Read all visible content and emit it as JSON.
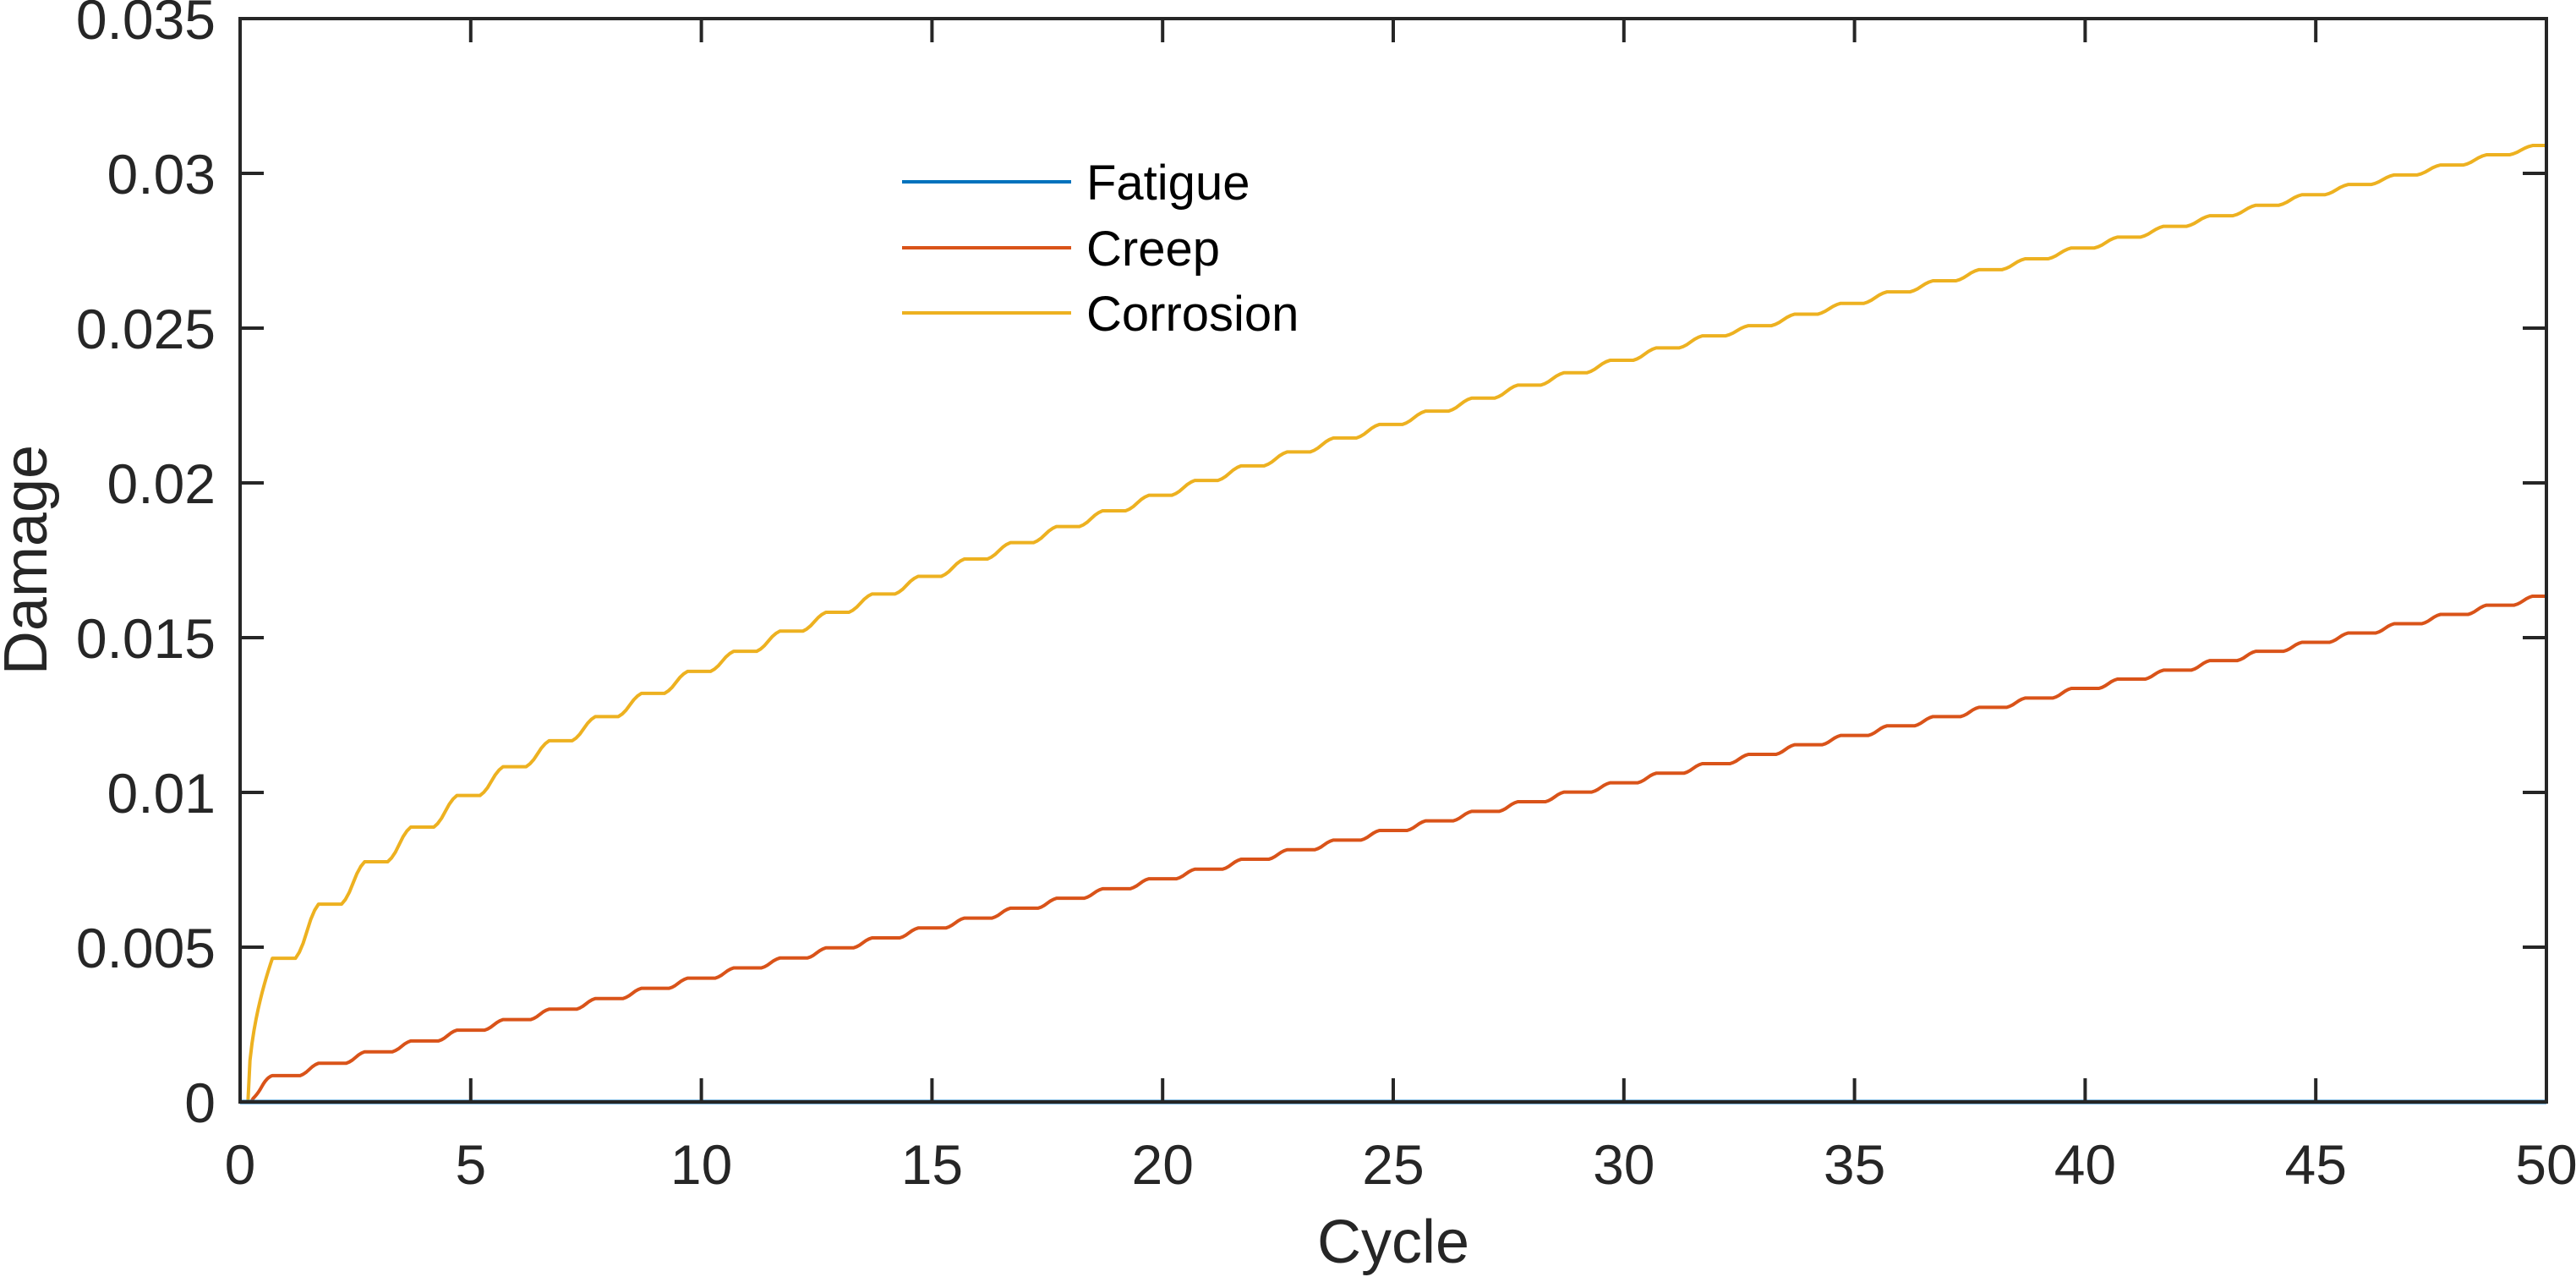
{
  "chart_data": {
    "type": "line",
    "title": "",
    "xlabel": "Cycle",
    "ylabel": "Damage",
    "xlim": [
      0,
      50
    ],
    "ylim": [
      0,
      0.035
    ],
    "xticks": [
      0,
      5,
      10,
      15,
      20,
      25,
      30,
      35,
      40,
      45,
      50
    ],
    "xtick_labels": [
      "0",
      "5",
      "10",
      "15",
      "20",
      "25",
      "30",
      "35",
      "40",
      "45",
      "50"
    ],
    "yticks": [
      0,
      0.005,
      0.01,
      0.015,
      0.02,
      0.025,
      0.03,
      0.035
    ],
    "ytick_labels": [
      "0",
      "0.005",
      "0.01",
      "0.015",
      "0.02",
      "0.025",
      "0.03",
      "0.035"
    ],
    "grid": false,
    "box": true,
    "legend_position": "upper-center-left, inside, no box",
    "x_note": "Series are staircase-like: each value listed below is the damage plateau reached after cycle k (k = 1..50); damage starts at 0 at cycle 0.",
    "cycles": [
      1,
      2,
      3,
      4,
      5,
      6,
      7,
      8,
      9,
      10,
      11,
      12,
      13,
      14,
      15,
      16,
      17,
      18,
      19,
      20,
      21,
      22,
      23,
      24,
      25,
      26,
      27,
      28,
      29,
      30,
      31,
      32,
      33,
      34,
      35,
      36,
      37,
      38,
      39,
      40,
      41,
      42,
      43,
      44,
      45,
      46,
      47,
      48,
      49,
      50
    ],
    "series": [
      {
        "name": "Fatigue",
        "color": "#0072BD",
        "values": [
          0,
          0,
          0,
          0,
          0,
          0,
          0,
          0,
          0,
          0,
          0,
          0,
          0,
          0,
          0,
          0,
          0,
          0,
          0,
          0,
          0,
          0,
          0,
          0,
          0,
          0,
          0,
          0,
          0,
          0,
          0,
          0,
          0,
          0,
          0,
          0,
          0,
          0,
          0,
          0,
          0,
          0,
          0,
          0,
          0,
          0,
          0,
          0,
          0,
          0
        ]
      },
      {
        "name": "Creep",
        "color": "#D95319",
        "values": [
          0.00085,
          0.00125,
          0.00162,
          0.00197,
          0.00232,
          0.00266,
          0.003,
          0.00334,
          0.00367,
          0.004,
          0.00433,
          0.00465,
          0.00498,
          0.0053,
          0.00562,
          0.00594,
          0.00626,
          0.00658,
          0.00689,
          0.00721,
          0.00752,
          0.00784,
          0.00815,
          0.00846,
          0.00877,
          0.00908,
          0.00939,
          0.0097,
          0.01001,
          0.01031,
          0.01062,
          0.01093,
          0.01123,
          0.01154,
          0.01184,
          0.01215,
          0.01245,
          0.01275,
          0.01305,
          0.01336,
          0.01366,
          0.01395,
          0.01426,
          0.01456,
          0.01485,
          0.01515,
          0.01545,
          0.01575,
          0.01605,
          0.01634
        ]
      },
      {
        "name": "Corrosion",
        "color": "#EDB120",
        "values": [
          0.00464,
          0.00639,
          0.00776,
          0.00888,
          0.0099,
          0.01083,
          0.01167,
          0.01245,
          0.0132,
          0.01391,
          0.01456,
          0.01521,
          0.01582,
          0.01641,
          0.01698,
          0.01754,
          0.01807,
          0.01859,
          0.0191,
          0.0196,
          0.02008,
          0.02055,
          0.021,
          0.02145,
          0.02189,
          0.02232,
          0.02274,
          0.02316,
          0.02356,
          0.02396,
          0.02436,
          0.02475,
          0.02508,
          0.02545,
          0.0258,
          0.02617,
          0.02653,
          0.02689,
          0.02724,
          0.02759,
          0.02794,
          0.02829,
          0.02863,
          0.02897,
          0.02931,
          0.02964,
          0.02995,
          0.03027,
          0.0306,
          0.0309
        ]
      }
    ]
  },
  "legend": {
    "items": [
      {
        "label": "Fatigue",
        "color": "#0072BD"
      },
      {
        "label": "Creep",
        "color": "#D95319"
      },
      {
        "label": "Corrosion",
        "color": "#EDB120"
      }
    ]
  },
  "style": {
    "axis_color": "#262626"
  }
}
